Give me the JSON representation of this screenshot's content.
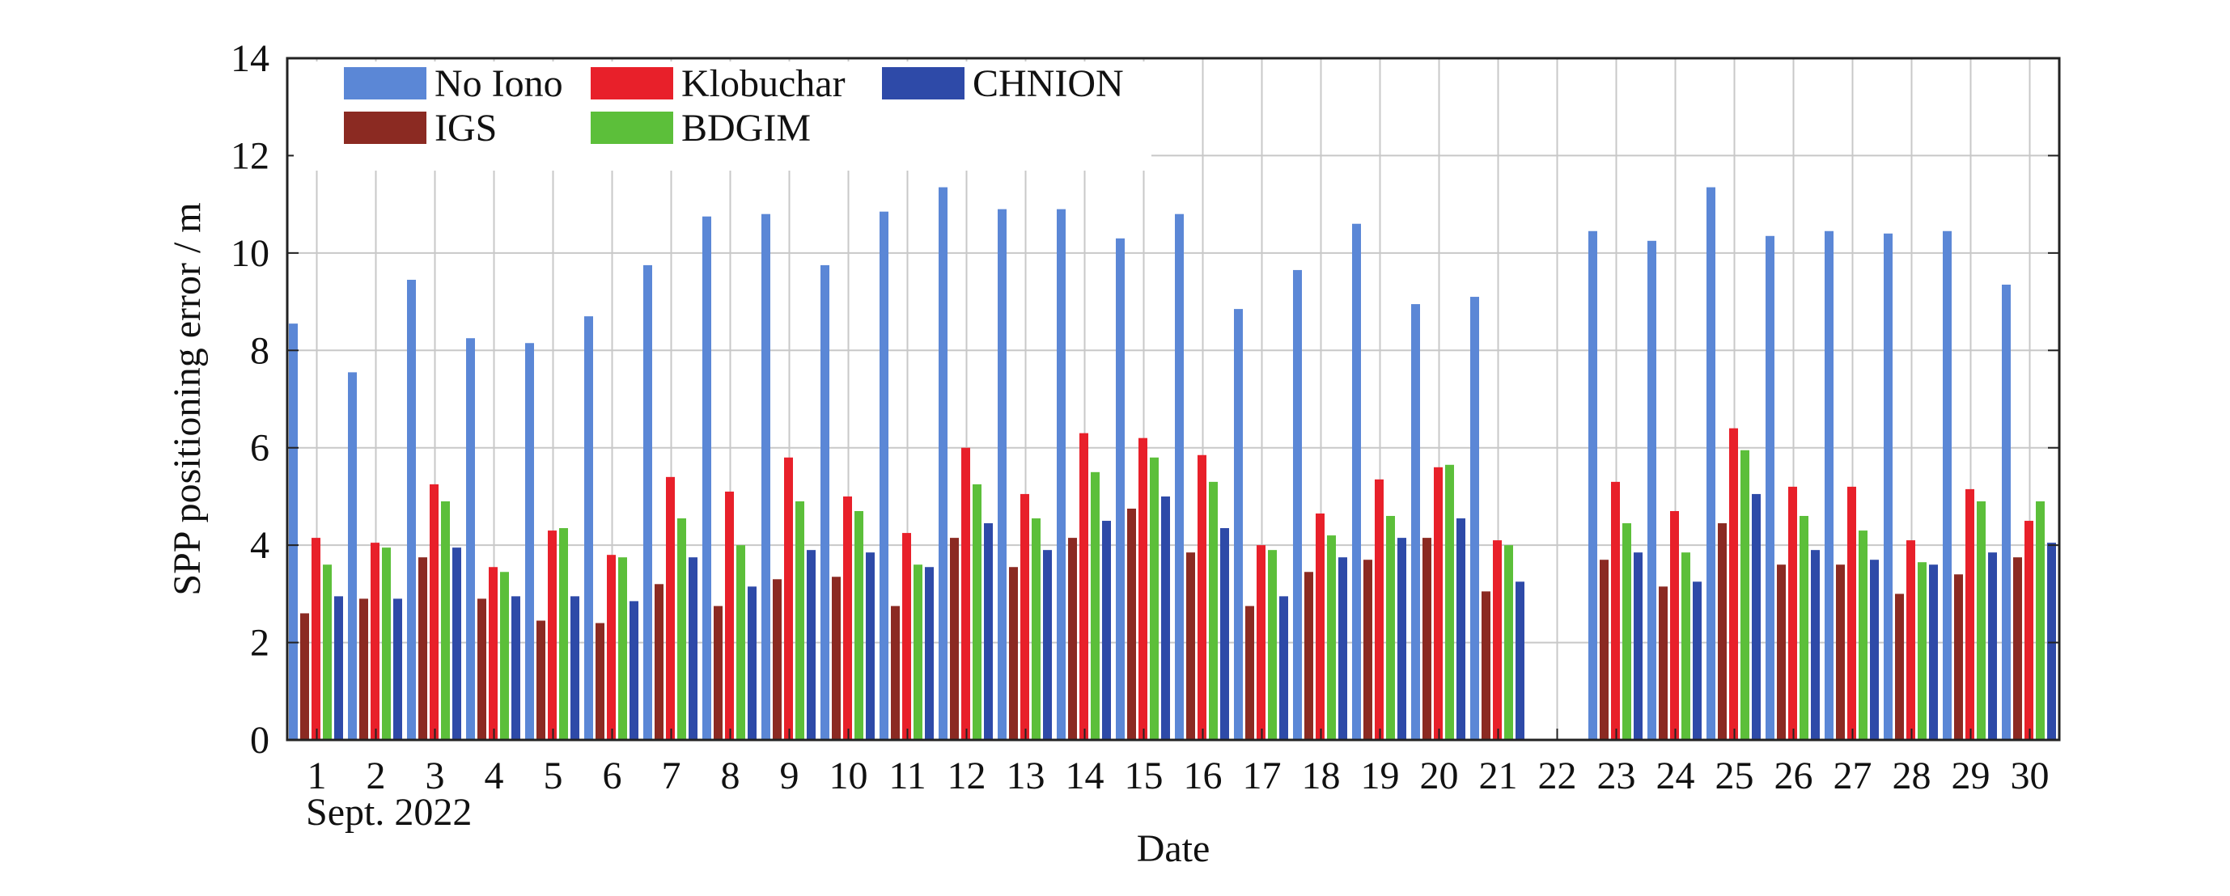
{
  "chart_data": {
    "type": "bar",
    "xlabel": "Date",
    "x_sublabel": "Sept. 2022",
    "ylabel": "SPP positioning error / m",
    "ylim": [
      0,
      14
    ],
    "yticks": [
      "0",
      "2",
      "4",
      "6",
      "8",
      "10",
      "12",
      "14"
    ],
    "grid": true,
    "legend_position": "top-left",
    "categories": [
      "1",
      "2",
      "3",
      "4",
      "5",
      "6",
      "7",
      "8",
      "9",
      "10",
      "11",
      "12",
      "13",
      "14",
      "15",
      "16",
      "17",
      "18",
      "19",
      "20",
      "21",
      "22",
      "23",
      "24",
      "25",
      "26",
      "27",
      "28",
      "29",
      "30"
    ],
    "series": [
      {
        "name": "No Iono",
        "color": "#5b87d6",
        "values": [
          8.55,
          7.55,
          9.45,
          8.25,
          8.15,
          8.7,
          9.75,
          10.75,
          10.8,
          9.75,
          10.85,
          11.35,
          10.9,
          10.9,
          10.3,
          10.8,
          8.85,
          9.65,
          10.6,
          8.95,
          9.1,
          null,
          10.45,
          10.25,
          11.35,
          10.35,
          10.45,
          10.4,
          10.45,
          9.35
        ]
      },
      {
        "name": "IGS",
        "color": "#8b2a22",
        "values": [
          2.6,
          2.9,
          3.75,
          2.9,
          2.45,
          2.4,
          3.2,
          2.75,
          3.3,
          3.35,
          2.75,
          4.15,
          3.55,
          4.15,
          4.75,
          3.85,
          2.75,
          3.45,
          3.7,
          4.15,
          3.05,
          null,
          3.7,
          3.15,
          4.45,
          3.6,
          3.6,
          3.0,
          3.4,
          3.75
        ]
      },
      {
        "name": "Klobuchar",
        "color": "#e8202a",
        "values": [
          4.15,
          4.05,
          5.25,
          3.55,
          4.3,
          3.8,
          5.4,
          5.1,
          5.8,
          5.0,
          4.25,
          6.0,
          5.05,
          6.3,
          6.2,
          5.85,
          4.0,
          4.65,
          5.35,
          5.6,
          4.1,
          null,
          5.3,
          4.7,
          6.4,
          5.2,
          5.2,
          4.1,
          5.15,
          4.5
        ]
      },
      {
        "name": "BDGIM",
        "color": "#5cbf3a",
        "values": [
          3.6,
          3.95,
          4.9,
          3.45,
          4.35,
          3.75,
          4.55,
          4.0,
          4.9,
          4.7,
          3.6,
          5.25,
          4.55,
          5.5,
          5.8,
          5.3,
          3.9,
          4.2,
          4.6,
          5.65,
          4.0,
          null,
          4.45,
          3.85,
          5.95,
          4.6,
          4.3,
          3.65,
          4.9,
          4.9
        ]
      },
      {
        "name": "CHNION",
        "color": "#2e4aa8",
        "values": [
          2.95,
          2.9,
          3.95,
          2.95,
          2.95,
          2.85,
          3.75,
          3.15,
          3.9,
          3.85,
          3.55,
          4.45,
          3.9,
          4.5,
          5.0,
          4.35,
          2.95,
          3.75,
          4.15,
          4.55,
          3.25,
          null,
          3.85,
          3.25,
          5.05,
          3.9,
          3.7,
          3.6,
          3.85,
          4.05
        ]
      }
    ]
  },
  "legend": {
    "items": [
      {
        "label": "No Iono",
        "color": "#5b87d6"
      },
      {
        "label": "Klobuchar",
        "color": "#e8202a"
      },
      {
        "label": "CHNION",
        "color": "#2e4aa8"
      },
      {
        "label": "IGS",
        "color": "#8b2a22"
      },
      {
        "label": "BDGIM",
        "color": "#5cbf3a"
      }
    ]
  }
}
